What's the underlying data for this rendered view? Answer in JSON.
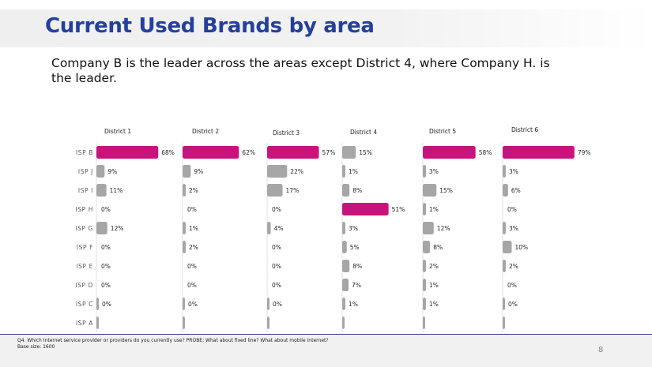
{
  "slide": {
    "title": "Current Used Brands by area",
    "subtitle": "Company B is the leader across the areas except District 4, where Company H. is the leader.",
    "footnote_question": "Q4. Which Internet service provider or providers do you currently use? PROBE: What about fixed line? What about mobile Internet?",
    "footnote_base": "Base size: 1600",
    "page_number": "8"
  },
  "colors": {
    "title": "#24409a",
    "highlight_bar": "#c8137c",
    "default_bar": "#a6a6a6",
    "footer_rule": "#2d3a78"
  },
  "chart_data": {
    "type": "bar",
    "orientation": "horizontal",
    "title": "Current Used Brands by area",
    "xlabel": "",
    "ylabel": "",
    "unit": "%",
    "xlim": [
      0,
      100
    ],
    "grid": false,
    "legend": "none",
    "categories": [
      "ISP B",
      "ISP J",
      "ISP I",
      "ISP H",
      "ISP G",
      "ISP F",
      "ISP E",
      "ISP D",
      "ISP C",
      "ISP A"
    ],
    "series": [
      {
        "name": "District 1",
        "values": [
          68,
          9,
          11,
          0,
          12,
          0,
          0,
          0,
          0,
          null
        ],
        "labels": [
          "68%",
          "9%",
          "11%",
          "0%",
          "12%",
          "0%",
          "0%",
          "0%",
          "0%",
          ""
        ],
        "highlight": "ISP B"
      },
      {
        "name": "District 2",
        "values": [
          62,
          9,
          2,
          0,
          1,
          2,
          0,
          0,
          0,
          null
        ],
        "labels": [
          "62%",
          "9%",
          "2%",
          "0%",
          "1%",
          "2%",
          "0%",
          "0%",
          "0%",
          ""
        ],
        "highlight": "ISP B"
      },
      {
        "name": "District 3",
        "values": [
          57,
          22,
          17,
          0,
          4,
          0,
          0,
          0,
          0,
          null
        ],
        "labels": [
          "57%",
          "22%",
          "17%",
          "0%",
          "4%",
          "0%",
          "0%",
          "0%",
          "0%",
          ""
        ],
        "highlight": "ISP B"
      },
      {
        "name": "District 4",
        "values": [
          15,
          1,
          8,
          51,
          3,
          5,
          8,
          7,
          1,
          null
        ],
        "labels": [
          "15%",
          "1%",
          "8%",
          "51%",
          "3%",
          "5%",
          "8%",
          "7%",
          "1%",
          ""
        ],
        "highlight": "ISP H"
      },
      {
        "name": "District 5",
        "values": [
          58,
          3,
          15,
          1,
          12,
          8,
          2,
          1,
          1,
          null
        ],
        "labels": [
          "58%",
          "3%",
          "15%",
          "1%",
          "12%",
          "8%",
          "2%",
          "1%",
          "1%",
          ""
        ],
        "highlight": "ISP B"
      },
      {
        "name": "District 6",
        "values": [
          79,
          3,
          6,
          0,
          3,
          10,
          2,
          0,
          0,
          null
        ],
        "labels": [
          "79%",
          "3%",
          "6%",
          "0%",
          "3%",
          "10%",
          "2%",
          "0%",
          "0%",
          ""
        ],
        "highlight": "ISP B"
      }
    ]
  }
}
